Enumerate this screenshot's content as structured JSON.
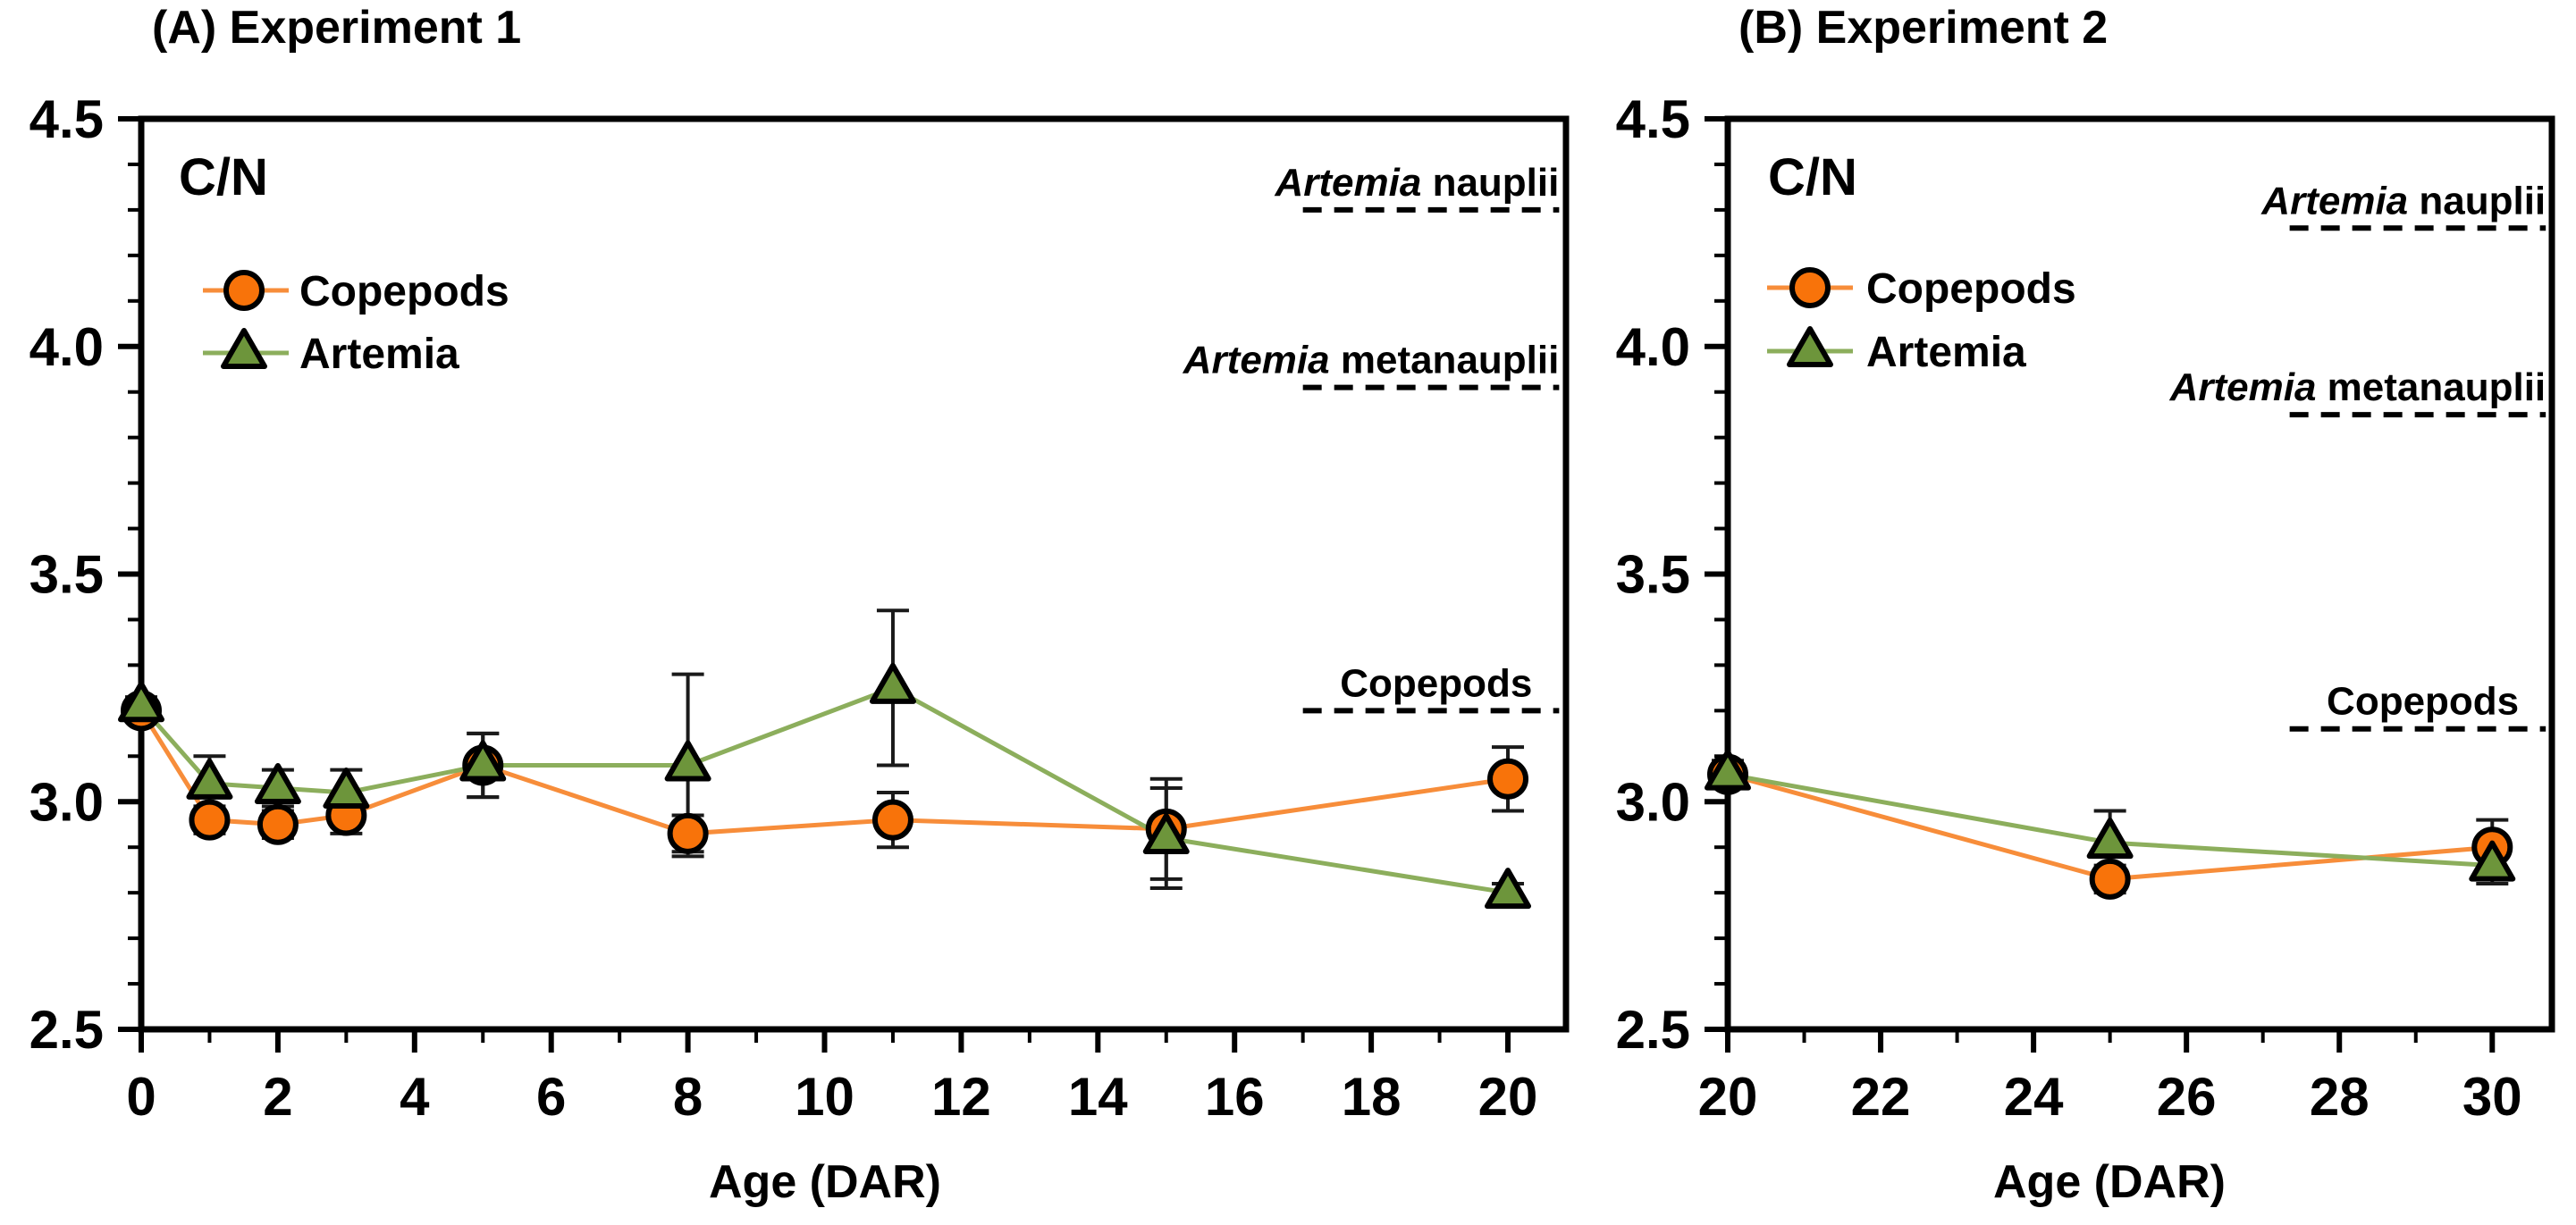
{
  "figure": {
    "background": "#ffffff",
    "axis_color": "#000000",
    "error_bar_color": "#1a1a1a"
  },
  "styles": {
    "copepods_marker_fill": "#f8730a",
    "copepods_line_color": "#f78d3a",
    "artemia_marker_fill": "#6d953b",
    "artemia_line_color": "#8cae5c",
    "marker_stroke": "#000000",
    "reference_line_color": "#000000"
  },
  "chart_data": [
    {
      "type": "line",
      "panel": "A",
      "title": "(A) Experiment 1",
      "inner_label": "C/N",
      "xlabel": "Age (DAR)",
      "xlim": [
        0,
        20.85
      ],
      "ylim": [
        2.5,
        4.5
      ],
      "xticks": [
        0,
        2,
        4,
        6,
        8,
        10,
        12,
        14,
        16,
        18,
        20
      ],
      "x_minor_step": 1,
      "yticks": [
        2.5,
        3.0,
        3.5,
        4.0,
        4.5
      ],
      "y_minor_step": 0.1,
      "grid": false,
      "legend_position": "upper-left-inside",
      "series": [
        {
          "name": "Copepods",
          "marker": "circle",
          "x": [
            0,
            1,
            2,
            3,
            5,
            8,
            11,
            15,
            20
          ],
          "y": [
            3.2,
            2.96,
            2.95,
            2.97,
            3.08,
            2.93,
            2.96,
            2.94,
            3.05
          ],
          "err": [
            0.02,
            0.03,
            0.03,
            0.04,
            0.07,
            0.04,
            0.06,
            0.11,
            0.07
          ]
        },
        {
          "name": "Artemia",
          "marker": "triangle",
          "x": [
            0,
            1,
            2,
            3,
            5,
            8,
            11,
            15,
            20
          ],
          "y": [
            3.21,
            3.04,
            3.03,
            3.02,
            3.08,
            3.08,
            3.25,
            2.92,
            2.8
          ],
          "err": [
            0.02,
            0.06,
            0.04,
            0.05,
            0.07,
            0.2,
            0.17,
            0.11,
            0.02
          ]
        }
      ],
      "reference_lines": [
        {
          "label_italic": "Artemia",
          "label_plain": "nauplii",
          "y": 4.3,
          "x_start": 17.0,
          "x_end": 20.75
        },
        {
          "label_italic": "Artemia",
          "label_plain": "metanauplii",
          "y": 3.91,
          "x_start": 17.0,
          "x_end": 20.75
        },
        {
          "label_italic": "",
          "label_plain": "Copepods",
          "y": 3.2,
          "x_start": 17.0,
          "x_end": 20.75
        }
      ]
    },
    {
      "type": "line",
      "panel": "B",
      "title": "(B) Experiment 2",
      "inner_label": "C/N",
      "xlabel": "Age (DAR)",
      "xlim": [
        20,
        30.78
      ],
      "ylim": [
        2.5,
        4.5
      ],
      "xticks": [
        20,
        22,
        24,
        26,
        28,
        30
      ],
      "x_minor_step": 1,
      "yticks": [
        2.5,
        3.0,
        3.5,
        4.0,
        4.5
      ],
      "y_minor_step": 0.1,
      "grid": false,
      "legend_position": "upper-left-inside",
      "series": [
        {
          "name": "Copepods",
          "marker": "circle",
          "x": [
            20,
            25,
            30
          ],
          "y": [
            3.06,
            2.83,
            2.9
          ],
          "err": [
            0.03,
            0.03,
            0.06
          ]
        },
        {
          "name": "Artemia",
          "marker": "triangle",
          "x": [
            20,
            25,
            30
          ],
          "y": [
            3.06,
            2.91,
            2.86
          ],
          "err": [
            0.03,
            0.07,
            0.04
          ]
        }
      ],
      "reference_lines": [
        {
          "label_italic": "Artemia",
          "label_plain": "nauplii",
          "y": 4.26,
          "x_start": 27.35,
          "x_end": 30.7
        },
        {
          "label_italic": "Artemia",
          "label_plain": "metanauplii",
          "y": 3.85,
          "x_start": 27.35,
          "x_end": 30.7
        },
        {
          "label_italic": "",
          "label_plain": "Copepods",
          "y": 3.16,
          "x_start": 27.35,
          "x_end": 30.7
        }
      ]
    }
  ]
}
